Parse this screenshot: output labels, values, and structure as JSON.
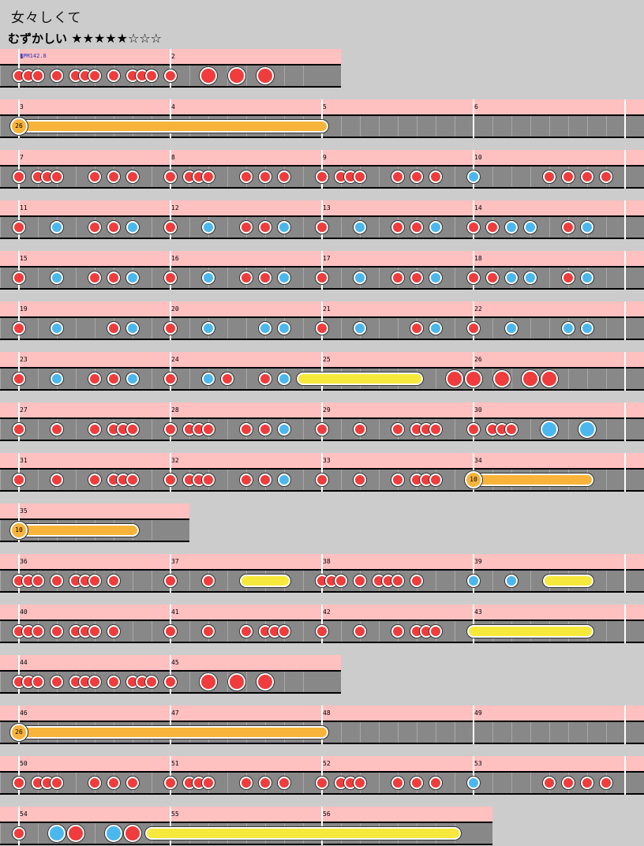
{
  "song": {
    "title": "女々しくて",
    "difficulty_label": "むずかしい",
    "difficulty_stars": "★★★★★☆☆☆",
    "bpm_label": "BPM142.8"
  },
  "colors": {
    "background": "#cccccc",
    "measure_strip": "#ffc0c0",
    "lane": "#888888",
    "don": "#f03c3c",
    "ka": "#4ab8ee",
    "drumroll": "#f7e83c",
    "balloon": "#f8b43a"
  },
  "note_legend": {
    "d": "don (red, small)",
    "D": "don (red, big)",
    "k": "ka (blue, small)",
    "K": "ka (blue, big)",
    "r": "drumroll",
    "b": "balloon"
  },
  "rows": [
    {
      "measures": [
        1,
        2
      ],
      "bpm": true,
      "notes": [
        [
          "d",
          0,
          0
        ],
        [
          "d",
          0,
          1
        ],
        [
          "d",
          0,
          2
        ],
        [
          "d",
          0,
          4
        ],
        [
          "d",
          0,
          6
        ],
        [
          "d",
          0,
          7
        ],
        [
          "d",
          0,
          8
        ],
        [
          "d",
          0,
          10
        ],
        [
          "d",
          0,
          12
        ],
        [
          "d",
          0,
          13
        ],
        [
          "d",
          0,
          14
        ],
        [
          "d",
          1,
          0
        ],
        [
          "D",
          1,
          4
        ],
        [
          "D",
          1,
          7
        ],
        [
          "D",
          1,
          10
        ]
      ]
    },
    {
      "measures": [
        3,
        4,
        5,
        6
      ],
      "notes": [
        [
          "b",
          0,
          0,
          2,
          0,
          "26"
        ]
      ]
    },
    {
      "measures": [
        7,
        8,
        9,
        10
      ],
      "notes": [
        [
          "d",
          0,
          0
        ],
        [
          "d",
          0,
          2
        ],
        [
          "d",
          0,
          3
        ],
        [
          "d",
          0,
          4
        ],
        [
          "d",
          0,
          8
        ],
        [
          "d",
          0,
          10
        ],
        [
          "d",
          0,
          12
        ],
        [
          "d",
          1,
          0
        ],
        [
          "d",
          1,
          2
        ],
        [
          "d",
          1,
          3
        ],
        [
          "d",
          1,
          4
        ],
        [
          "d",
          1,
          8
        ],
        [
          "d",
          1,
          10
        ],
        [
          "d",
          1,
          12
        ],
        [
          "d",
          2,
          0
        ],
        [
          "d",
          2,
          2
        ],
        [
          "d",
          2,
          3
        ],
        [
          "d",
          2,
          4
        ],
        [
          "d",
          2,
          8
        ],
        [
          "d",
          2,
          10
        ],
        [
          "d",
          2,
          12
        ],
        [
          "k",
          3,
          0
        ],
        [
          "d",
          3,
          8
        ],
        [
          "d",
          3,
          10
        ],
        [
          "d",
          3,
          12
        ],
        [
          "d",
          3,
          14
        ]
      ]
    },
    {
      "measures": [
        11,
        12,
        13,
        14
      ],
      "notes": [
        [
          "d",
          0,
          0
        ],
        [
          "k",
          0,
          4
        ],
        [
          "d",
          0,
          8
        ],
        [
          "d",
          0,
          10
        ],
        [
          "k",
          0,
          12
        ],
        [
          "d",
          1,
          0
        ],
        [
          "k",
          1,
          4
        ],
        [
          "d",
          1,
          8
        ],
        [
          "d",
          1,
          10
        ],
        [
          "k",
          1,
          12
        ],
        [
          "d",
          2,
          0
        ],
        [
          "k",
          2,
          4
        ],
        [
          "d",
          2,
          8
        ],
        [
          "d",
          2,
          10
        ],
        [
          "k",
          2,
          12
        ],
        [
          "d",
          3,
          0
        ],
        [
          "d",
          3,
          2
        ],
        [
          "k",
          3,
          4
        ],
        [
          "k",
          3,
          6
        ],
        [
          "d",
          3,
          10
        ],
        [
          "k",
          3,
          12
        ]
      ]
    },
    {
      "measures": [
        15,
        16,
        17,
        18
      ],
      "notes": [
        [
          "d",
          0,
          0
        ],
        [
          "k",
          0,
          4
        ],
        [
          "d",
          0,
          8
        ],
        [
          "d",
          0,
          10
        ],
        [
          "k",
          0,
          12
        ],
        [
          "d",
          1,
          0
        ],
        [
          "k",
          1,
          4
        ],
        [
          "d",
          1,
          8
        ],
        [
          "d",
          1,
          10
        ],
        [
          "k",
          1,
          12
        ],
        [
          "d",
          2,
          0
        ],
        [
          "k",
          2,
          4
        ],
        [
          "d",
          2,
          8
        ],
        [
          "d",
          2,
          10
        ],
        [
          "k",
          2,
          12
        ],
        [
          "d",
          3,
          0
        ],
        [
          "d",
          3,
          2
        ],
        [
          "k",
          3,
          4
        ],
        [
          "k",
          3,
          6
        ],
        [
          "d",
          3,
          10
        ],
        [
          "k",
          3,
          12
        ]
      ]
    },
    {
      "measures": [
        19,
        20,
        21,
        22
      ],
      "notes": [
        [
          "d",
          0,
          0
        ],
        [
          "k",
          0,
          4
        ],
        [
          "d",
          0,
          10
        ],
        [
          "k",
          0,
          12
        ],
        [
          "d",
          1,
          0
        ],
        [
          "k",
          1,
          4
        ],
        [
          "k",
          1,
          10
        ],
        [
          "k",
          1,
          12
        ],
        [
          "d",
          2,
          0
        ],
        [
          "k",
          2,
          4
        ],
        [
          "d",
          2,
          10
        ],
        [
          "k",
          2,
          12
        ],
        [
          "d",
          3,
          0
        ],
        [
          "k",
          3,
          4
        ],
        [
          "k",
          3,
          10
        ],
        [
          "k",
          3,
          12
        ]
      ]
    },
    {
      "measures": [
        23,
        24,
        25,
        26
      ],
      "notes": [
        [
          "d",
          0,
          0
        ],
        [
          "k",
          0,
          4
        ],
        [
          "d",
          0,
          8
        ],
        [
          "d",
          0,
          10
        ],
        [
          "k",
          0,
          12
        ],
        [
          "d",
          1,
          0
        ],
        [
          "k",
          1,
          4
        ],
        [
          "d",
          1,
          6
        ],
        [
          "d",
          1,
          10
        ],
        [
          "k",
          1,
          12
        ],
        [
          "r",
          1,
          14,
          2,
          10
        ],
        [
          "D",
          2,
          14
        ],
        [
          "D",
          3,
          0
        ],
        [
          "D",
          3,
          3
        ],
        [
          "D",
          3,
          6
        ],
        [
          "D",
          3,
          8
        ]
      ]
    },
    {
      "measures": [
        27,
        28,
        29,
        30
      ],
      "notes": [
        [
          "d",
          0,
          0
        ],
        [
          "d",
          0,
          4
        ],
        [
          "d",
          0,
          8
        ],
        [
          "d",
          0,
          10
        ],
        [
          "d",
          0,
          11
        ],
        [
          "d",
          0,
          12
        ],
        [
          "d",
          1,
          0
        ],
        [
          "d",
          1,
          2
        ],
        [
          "d",
          1,
          3
        ],
        [
          "d",
          1,
          4
        ],
        [
          "d",
          1,
          8
        ],
        [
          "d",
          1,
          10
        ],
        [
          "k",
          1,
          12
        ],
        [
          "d",
          2,
          0
        ],
        [
          "d",
          2,
          4
        ],
        [
          "d",
          2,
          8
        ],
        [
          "d",
          2,
          10
        ],
        [
          "d",
          2,
          11
        ],
        [
          "d",
          2,
          12
        ],
        [
          "d",
          3,
          0
        ],
        [
          "d",
          3,
          2
        ],
        [
          "d",
          3,
          3
        ],
        [
          "d",
          3,
          4
        ],
        [
          "K",
          3,
          8
        ],
        [
          "K",
          3,
          12
        ]
      ]
    },
    {
      "measures": [
        31,
        32,
        33,
        34
      ],
      "notes": [
        [
          "d",
          0,
          0
        ],
        [
          "d",
          0,
          4
        ],
        [
          "d",
          0,
          8
        ],
        [
          "d",
          0,
          10
        ],
        [
          "d",
          0,
          11
        ],
        [
          "d",
          0,
          12
        ],
        [
          "d",
          1,
          0
        ],
        [
          "d",
          1,
          2
        ],
        [
          "d",
          1,
          3
        ],
        [
          "d",
          1,
          4
        ],
        [
          "d",
          1,
          8
        ],
        [
          "d",
          1,
          10
        ],
        [
          "k",
          1,
          12
        ],
        [
          "d",
          2,
          0
        ],
        [
          "d",
          2,
          4
        ],
        [
          "d",
          2,
          8
        ],
        [
          "d",
          2,
          10
        ],
        [
          "d",
          2,
          11
        ],
        [
          "d",
          2,
          12
        ],
        [
          "b",
          3,
          0,
          3,
          12,
          "10"
        ]
      ]
    },
    {
      "measures": [
        35
      ],
      "notes": [
        [
          "b",
          0,
          0,
          0,
          12,
          "10"
        ]
      ]
    },
    {
      "measures": [
        36,
        37,
        38,
        39
      ],
      "notes": [
        [
          "d",
          0,
          0
        ],
        [
          "d",
          0,
          1
        ],
        [
          "d",
          0,
          2
        ],
        [
          "d",
          0,
          4
        ],
        [
          "d",
          0,
          6
        ],
        [
          "d",
          0,
          7
        ],
        [
          "d",
          0,
          8
        ],
        [
          "d",
          0,
          10
        ],
        [
          "d",
          1,
          0
        ],
        [
          "d",
          1,
          4
        ],
        [
          "r",
          1,
          8,
          1,
          12
        ],
        [
          "d",
          2,
          0
        ],
        [
          "d",
          2,
          1
        ],
        [
          "d",
          2,
          2
        ],
        [
          "d",
          2,
          4
        ],
        [
          "d",
          2,
          6
        ],
        [
          "d",
          2,
          7
        ],
        [
          "d",
          2,
          8
        ],
        [
          "d",
          2,
          10
        ],
        [
          "k",
          3,
          0
        ],
        [
          "k",
          3,
          4
        ],
        [
          "r",
          3,
          8,
          3,
          12
        ]
      ]
    },
    {
      "measures": [
        40,
        41,
        42,
        43
      ],
      "notes": [
        [
          "d",
          0,
          0
        ],
        [
          "d",
          0,
          1
        ],
        [
          "d",
          0,
          2
        ],
        [
          "d",
          0,
          4
        ],
        [
          "d",
          0,
          6
        ],
        [
          "d",
          0,
          7
        ],
        [
          "d",
          0,
          8
        ],
        [
          "d",
          0,
          10
        ],
        [
          "d",
          1,
          0
        ],
        [
          "d",
          1,
          4
        ],
        [
          "d",
          1,
          8
        ],
        [
          "d",
          1,
          10
        ],
        [
          "d",
          1,
          11
        ],
        [
          "d",
          1,
          12
        ],
        [
          "d",
          2,
          0
        ],
        [
          "d",
          2,
          4
        ],
        [
          "d",
          2,
          8
        ],
        [
          "d",
          2,
          10
        ],
        [
          "d",
          2,
          11
        ],
        [
          "d",
          2,
          12
        ],
        [
          "r",
          3,
          0,
          3,
          12
        ]
      ]
    },
    {
      "measures": [
        44,
        45
      ],
      "notes": [
        [
          "d",
          0,
          0
        ],
        [
          "d",
          0,
          1
        ],
        [
          "d",
          0,
          2
        ],
        [
          "d",
          0,
          4
        ],
        [
          "d",
          0,
          6
        ],
        [
          "d",
          0,
          7
        ],
        [
          "d",
          0,
          8
        ],
        [
          "d",
          0,
          10
        ],
        [
          "d",
          0,
          12
        ],
        [
          "d",
          0,
          13
        ],
        [
          "d",
          0,
          14
        ],
        [
          "d",
          1,
          0
        ],
        [
          "D",
          1,
          4
        ],
        [
          "D",
          1,
          7
        ],
        [
          "D",
          1,
          10
        ]
      ]
    },
    {
      "measures": [
        46,
        47,
        48,
        49
      ],
      "notes": [
        [
          "b",
          0,
          0,
          2,
          0,
          "26"
        ]
      ]
    },
    {
      "measures": [
        50,
        51,
        52,
        53
      ],
      "notes": [
        [
          "d",
          0,
          0
        ],
        [
          "d",
          0,
          2
        ],
        [
          "d",
          0,
          3
        ],
        [
          "d",
          0,
          4
        ],
        [
          "d",
          0,
          8
        ],
        [
          "d",
          0,
          10
        ],
        [
          "d",
          0,
          12
        ],
        [
          "d",
          1,
          0
        ],
        [
          "d",
          1,
          2
        ],
        [
          "d",
          1,
          3
        ],
        [
          "d",
          1,
          4
        ],
        [
          "d",
          1,
          8
        ],
        [
          "d",
          1,
          10
        ],
        [
          "d",
          1,
          12
        ],
        [
          "d",
          2,
          0
        ],
        [
          "d",
          2,
          2
        ],
        [
          "d",
          2,
          3
        ],
        [
          "d",
          2,
          4
        ],
        [
          "d",
          2,
          8
        ],
        [
          "d",
          2,
          10
        ],
        [
          "d",
          2,
          12
        ],
        [
          "k",
          3,
          0
        ],
        [
          "d",
          3,
          8
        ],
        [
          "d",
          3,
          10
        ],
        [
          "d",
          3,
          12
        ],
        [
          "d",
          3,
          14
        ]
      ]
    },
    {
      "measures": [
        54,
        55,
        56
      ],
      "notes": [
        [
          "d",
          0,
          0
        ],
        [
          "K",
          0,
          4
        ],
        [
          "D",
          0,
          6
        ],
        [
          "K",
          0,
          10
        ],
        [
          "D",
          0,
          12
        ],
        [
          "r",
          0,
          14,
          2,
          14
        ]
      ]
    }
  ]
}
